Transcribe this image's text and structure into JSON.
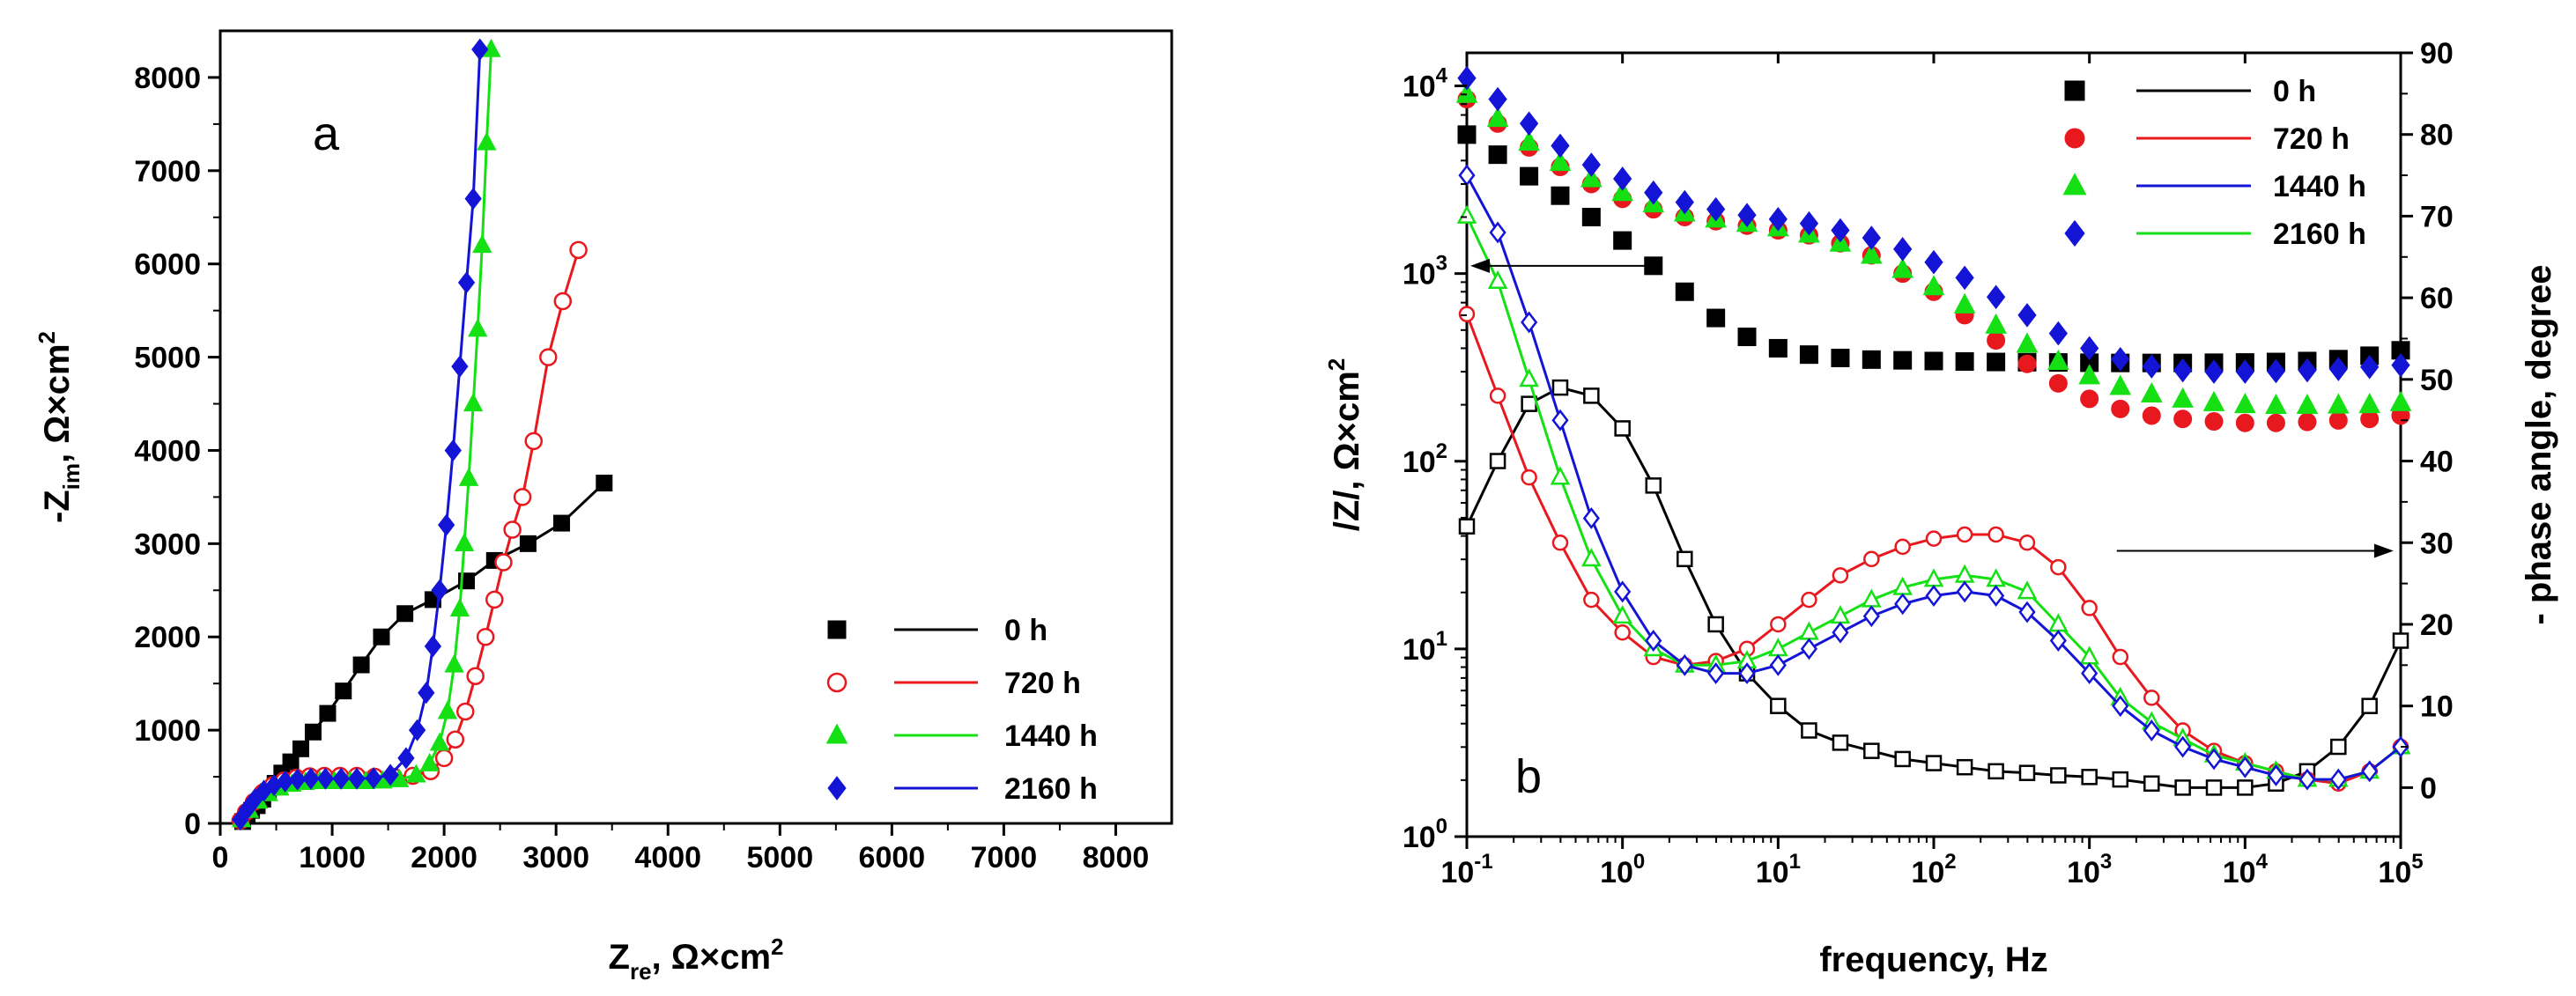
{
  "colors": {
    "s0": "#000000",
    "s720": "#e8191e",
    "s1440": "#14e014",
    "s2160": "#1414d6"
  },
  "chart_data": [
    {
      "type": "scatter",
      "panel_label": "a",
      "xlabel": {
        "main": "Z",
        "sub": "re",
        "sep": ", ",
        "unit": "Ω×cm",
        "sup": "2"
      },
      "ylabel": {
        "main": "-Z",
        "sub": "im",
        "sep": ", ",
        "unit": "Ω×cm",
        "sup": "2"
      },
      "xlim": [
        0,
        8500
      ],
      "ylim": [
        0,
        8500
      ],
      "xticks": [
        0,
        1000,
        2000,
        3000,
        4000,
        5000,
        6000,
        7000,
        8000
      ],
      "xtick_labels": [
        "0",
        "1000",
        "2000",
        "3000",
        "4000",
        "5000",
        "6000",
        "7000",
        "8000"
      ],
      "yticks": [
        0,
        1000,
        2000,
        3000,
        4000,
        5000,
        6000,
        7000,
        8000
      ],
      "ytick_labels": [
        "0",
        "1000",
        "2000",
        "3000",
        "4000",
        "5000",
        "6000",
        "7000",
        "8000"
      ],
      "legend_position": "lower-right",
      "legend": [
        {
          "key": "s0",
          "label": "0 h",
          "marker": "square",
          "filled": true
        },
        {
          "key": "s720",
          "label": "720 h",
          "marker": "circle",
          "filled": false
        },
        {
          "key": "s1440",
          "label": "1440 h",
          "marker": "triangle",
          "filled": true
        },
        {
          "key": "s2160",
          "label": "2160 h",
          "marker": "diamond",
          "filled": true
        }
      ],
      "series": [
        {
          "key": "s0",
          "name": "0 h",
          "marker": "square",
          "filled": true,
          "x": [
            200,
            240,
            280,
            330,
            380,
            430,
            490,
            550,
            630,
            720,
            830,
            960,
            1100,
            1260,
            1440,
            1650,
            1900,
            2200,
            2450,
            2750,
            3050,
            3430
          ],
          "y": [
            20,
            80,
            140,
            190,
            260,
            340,
            430,
            540,
            660,
            800,
            980,
            1180,
            1420,
            1700,
            2000,
            2250,
            2400,
            2600,
            2820,
            3000,
            3220,
            3650
          ]
        },
        {
          "key": "s720",
          "name": "720 h",
          "marker": "circle",
          "filled": false,
          "x": [
            180,
            230,
            300,
            380,
            470,
            570,
            680,
            800,
            930,
            1070,
            1220,
            1380,
            1550,
            1720,
            1880,
            2000,
            2100,
            2190,
            2280,
            2370,
            2450,
            2530,
            2610,
            2700,
            2800,
            2930,
            3060,
            3200
          ],
          "y": [
            30,
            120,
            230,
            330,
            410,
            460,
            490,
            505,
            510,
            510,
            510,
            500,
            500,
            510,
            560,
            700,
            900,
            1200,
            1580,
            2000,
            2400,
            2800,
            3150,
            3500,
            4100,
            5000,
            5600,
            6150
          ]
        },
        {
          "key": "s1440",
          "name": "1440 h",
          "marker": "triangle",
          "filled": true,
          "x": [
            190,
            260,
            340,
            430,
            530,
            640,
            760,
            890,
            1020,
            1160,
            1300,
            1450,
            1600,
            1750,
            1870,
            1960,
            2030,
            2090,
            2140,
            2180,
            2220,
            2260,
            2300,
            2340,
            2380,
            2420
          ],
          "y": [
            40,
            140,
            240,
            320,
            380,
            420,
            440,
            450,
            450,
            450,
            450,
            455,
            470,
            520,
            640,
            860,
            1200,
            1700,
            2300,
            3000,
            3700,
            4500,
            5300,
            6200,
            7300,
            8300
          ]
        },
        {
          "key": "s2160",
          "name": "2160 h",
          "marker": "diamond",
          "filled": true,
          "x": [
            180,
            240,
            310,
            390,
            480,
            580,
            690,
            810,
            940,
            1080,
            1220,
            1370,
            1520,
            1660,
            1760,
            1840,
            1900,
            1960,
            2020,
            2080,
            2140,
            2200,
            2260,
            2320
          ],
          "y": [
            40,
            150,
            260,
            350,
            410,
            450,
            470,
            480,
            480,
            480,
            480,
            485,
            520,
            700,
            1000,
            1400,
            1900,
            2500,
            3200,
            4000,
            4900,
            5800,
            6700,
            8300
          ]
        }
      ]
    },
    {
      "type": "line",
      "panel_label": "b",
      "xlabel": "frequency, Hz",
      "ylabel": {
        "text": "/Z/, Ω×cm",
        "sup": "2"
      },
      "y2label": "- phase angle, degree",
      "x_scale": "log",
      "y_scale": "log",
      "xlim": [
        0.1,
        100000
      ],
      "ylim": [
        1,
        15000
      ],
      "y2lim": [
        -6,
        90
      ],
      "xticks": [
        0.1,
        1,
        10,
        100,
        1000,
        10000,
        100000
      ],
      "xtick_labels": [
        {
          "base": "10",
          "exp": "-1"
        },
        {
          "base": "10",
          "exp": "0"
        },
        {
          "base": "10",
          "exp": "1"
        },
        {
          "base": "10",
          "exp": "2"
        },
        {
          "base": "10",
          "exp": "3"
        },
        {
          "base": "10",
          "exp": "4"
        },
        {
          "base": "10",
          "exp": "5"
        }
      ],
      "yticks": [
        1,
        10,
        100,
        1000,
        10000
      ],
      "ytick_labels": [
        {
          "base": "10",
          "exp": "0"
        },
        {
          "base": "10",
          "exp": "1"
        },
        {
          "base": "10",
          "exp": "2"
        },
        {
          "base": "10",
          "exp": "3"
        },
        {
          "base": "10",
          "exp": "4"
        }
      ],
      "y2ticks": [
        0,
        10,
        20,
        30,
        40,
        50,
        60,
        70,
        80,
        90
      ],
      "y2tick_labels": [
        "0",
        "10",
        "20",
        "30",
        "40",
        "50",
        "60",
        "70",
        "80",
        "90"
      ],
      "legend_position": "top-right",
      "legend": [
        {
          "key": "s0",
          "label": "0 h",
          "marker": "square"
        },
        {
          "key": "s720",
          "label": "720 h",
          "marker": "circle"
        },
        {
          "key": "s1440",
          "label": "1440 h",
          "marker": "triangle"
        },
        {
          "key": "s2160",
          "label": "2160 h",
          "marker": "diamond"
        }
      ],
      "annotations": [
        {
          "type": "arrow",
          "direction": "left",
          "x_from": 1.6,
          "x_to": 0.1,
          "y": 1100,
          "axis": "left",
          "meaning": "|Z| curves refer to left axis"
        },
        {
          "type": "arrow",
          "direction": "right",
          "x_from": 1500,
          "x_to": 90000,
          "y2": 29,
          "axis": "right",
          "meaning": "phase curves refer to right axis"
        }
      ],
      "freq": [
        0.1,
        0.158,
        0.251,
        0.398,
        0.631,
        1,
        1.58,
        2.51,
        3.98,
        6.31,
        10,
        15.8,
        25.1,
        39.8,
        63.1,
        100,
        158,
        251,
        398,
        631,
        1000,
        1580,
        2510,
        3980,
        6310,
        10000,
        15800,
        25100,
        39800,
        63100,
        100000
      ],
      "modulus_series": [
        {
          "key": "s0",
          "name": "0 h",
          "filled": true,
          "values": [
            5500,
            4300,
            3300,
            2600,
            2000,
            1500,
            1100,
            800,
            580,
            460,
            400,
            370,
            355,
            348,
            345,
            342,
            340,
            338,
            337,
            336,
            335,
            334,
            334,
            334,
            335,
            336,
            338,
            342,
            350,
            365,
            390
          ]
        },
        {
          "key": "s720",
          "name": "720 h",
          "filled": true,
          "values": [
            8500,
            6300,
            4700,
            3700,
            3000,
            2500,
            2200,
            2000,
            1900,
            1800,
            1700,
            1600,
            1450,
            1250,
            1000,
            800,
            600,
            440,
            330,
            260,
            215,
            190,
            175,
            168,
            163,
            160,
            160,
            162,
            165,
            168,
            175
          ]
        },
        {
          "key": "s1440",
          "name": "1440 h",
          "filled": true,
          "values": [
            9000,
            6700,
            5000,
            3900,
            3200,
            2700,
            2350,
            2100,
            1950,
            1850,
            1750,
            1620,
            1450,
            1250,
            1050,
            850,
            680,
            530,
            420,
            340,
            285,
            250,
            228,
            214,
            205,
            200,
            198,
            198,
            199,
            200,
            205
          ]
        },
        {
          "key": "s2160",
          "name": "2160 h",
          "filled": true,
          "values": [
            11000,
            8500,
            6300,
            4800,
            3800,
            3200,
            2700,
            2400,
            2200,
            2050,
            1950,
            1850,
            1700,
            1550,
            1350,
            1150,
            950,
            750,
            600,
            480,
            400,
            350,
            320,
            305,
            300,
            300,
            302,
            305,
            310,
            318,
            325
          ]
        }
      ],
      "phase_series": [
        {
          "key": "s0",
          "name": "0 h",
          "filled": false,
          "values": [
            32,
            40,
            47,
            49,
            48,
            44,
            37,
            28,
            20,
            14,
            10,
            7,
            5.5,
            4.5,
            3.5,
            3,
            2.5,
            2,
            1.8,
            1.5,
            1.3,
            1,
            0.5,
            0,
            0,
            0,
            0.5,
            2,
            5,
            10,
            18
          ]
        },
        {
          "key": "s720",
          "name": "720 h",
          "filled": false,
          "values": [
            58,
            48,
            38,
            30,
            23,
            19,
            16,
            15,
            15.5,
            17,
            20,
            23,
            26,
            28,
            29.5,
            30.5,
            31,
            31,
            30,
            27,
            22,
            16,
            11,
            7,
            4.5,
            3,
            2,
            1,
            0.5,
            2,
            5
          ]
        },
        {
          "key": "s1440",
          "name": "1440 h",
          "filled": false,
          "values": [
            70,
            62,
            50,
            38,
            28,
            21,
            17,
            15,
            15,
            15.5,
            17,
            19,
            21,
            23,
            24.5,
            25.5,
            26,
            25.5,
            24,
            20,
            16,
            11,
            8,
            6,
            4,
            3,
            2,
            1,
            1,
            2,
            5
          ]
        },
        {
          "key": "s2160",
          "name": "2160 h",
          "filled": false,
          "values": [
            75,
            68,
            57,
            45,
            33,
            24,
            18,
            15,
            14,
            14,
            15,
            17,
            19,
            21,
            22.5,
            23.5,
            24,
            23.5,
            21.5,
            18,
            14,
            10,
            7,
            5,
            3.5,
            2.5,
            1.5,
            1,
            1,
            2,
            5
          ]
        }
      ]
    }
  ]
}
